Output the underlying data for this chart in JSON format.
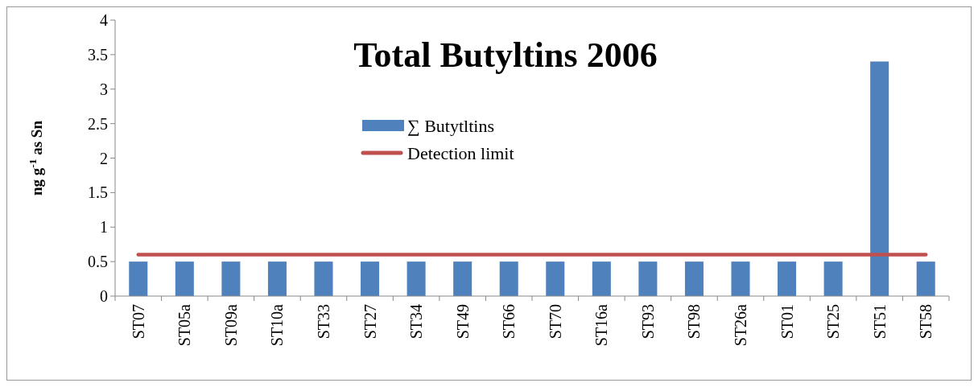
{
  "chart_data": {
    "type": "bar",
    "title": "Total Butyltins 2006",
    "ylabel": "ng g$^{-1}$ as Sn",
    "categories": [
      "ST07",
      "ST05a",
      "ST09a",
      "ST10a",
      "ST33",
      "ST27",
      "ST34",
      "ST49",
      "ST66",
      "ST70",
      "ST16a",
      "ST93",
      "ST98",
      "ST26a",
      "ST01",
      "ST25",
      "ST51",
      "ST58"
    ],
    "series": [
      {
        "name": "∑ Butytltins",
        "color": "#4f81bd",
        "values": [
          0.5,
          0.5,
          0.5,
          0.5,
          0.5,
          0.5,
          0.5,
          0.5,
          0.5,
          0.5,
          0.5,
          0.5,
          0.5,
          0.5,
          0.5,
          0.5,
          3.4,
          0.5
        ]
      },
      {
        "name": "Detection limit",
        "type": "line",
        "color": "#c0504d",
        "values": [
          0.6,
          0.6,
          0.6,
          0.6,
          0.6,
          0.6,
          0.6,
          0.6,
          0.6,
          0.6,
          0.6,
          0.6,
          0.6,
          0.6,
          0.6,
          0.6,
          0.6,
          0.6
        ]
      }
    ],
    "ylim": [
      0,
      4
    ],
    "yticks": [
      0,
      0.5,
      1,
      1.5,
      2,
      2.5,
      3,
      3.5,
      4
    ],
    "grid": false,
    "legend": "top",
    "marker": "none"
  }
}
